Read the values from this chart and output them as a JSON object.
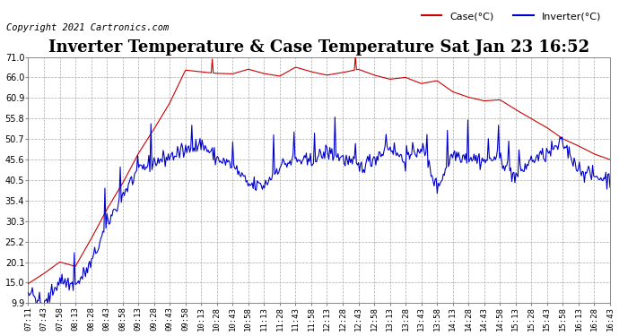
{
  "title": "Inverter Temperature & Case Temperature Sat Jan 23 16:52",
  "copyright": "Copyright 2021 Cartronics.com",
  "legend_case": "Case(°C)",
  "legend_inverter": "Inverter(°C)",
  "yticks": [
    9.9,
    15.0,
    20.1,
    25.2,
    30.3,
    35.4,
    40.5,
    45.6,
    50.7,
    55.8,
    60.9,
    66.0,
    71.0
  ],
  "ymin": 9.9,
  "ymax": 71.0,
  "xtick_labels": [
    "07:11",
    "07:43",
    "07:58",
    "08:13",
    "08:28",
    "08:43",
    "08:58",
    "09:13",
    "09:28",
    "09:43",
    "09:58",
    "10:13",
    "10:28",
    "10:43",
    "10:58",
    "11:13",
    "11:28",
    "11:43",
    "11:58",
    "12:13",
    "12:28",
    "12:43",
    "12:58",
    "13:13",
    "13:28",
    "13:43",
    "13:58",
    "14:13",
    "14:28",
    "14:43",
    "14:58",
    "15:13",
    "15:28",
    "15:43",
    "15:58",
    "16:13",
    "16:28",
    "16:43"
  ],
  "bg_color": "#ffffff",
  "grid_color": "#aaaaaa",
  "case_color": "#cc0000",
  "inverter_color": "#0000cc",
  "title_fontsize": 13,
  "copyright_fontsize": 7.5,
  "tick_label_fontsize": 6.5,
  "ytick_label_fontsize": 7
}
